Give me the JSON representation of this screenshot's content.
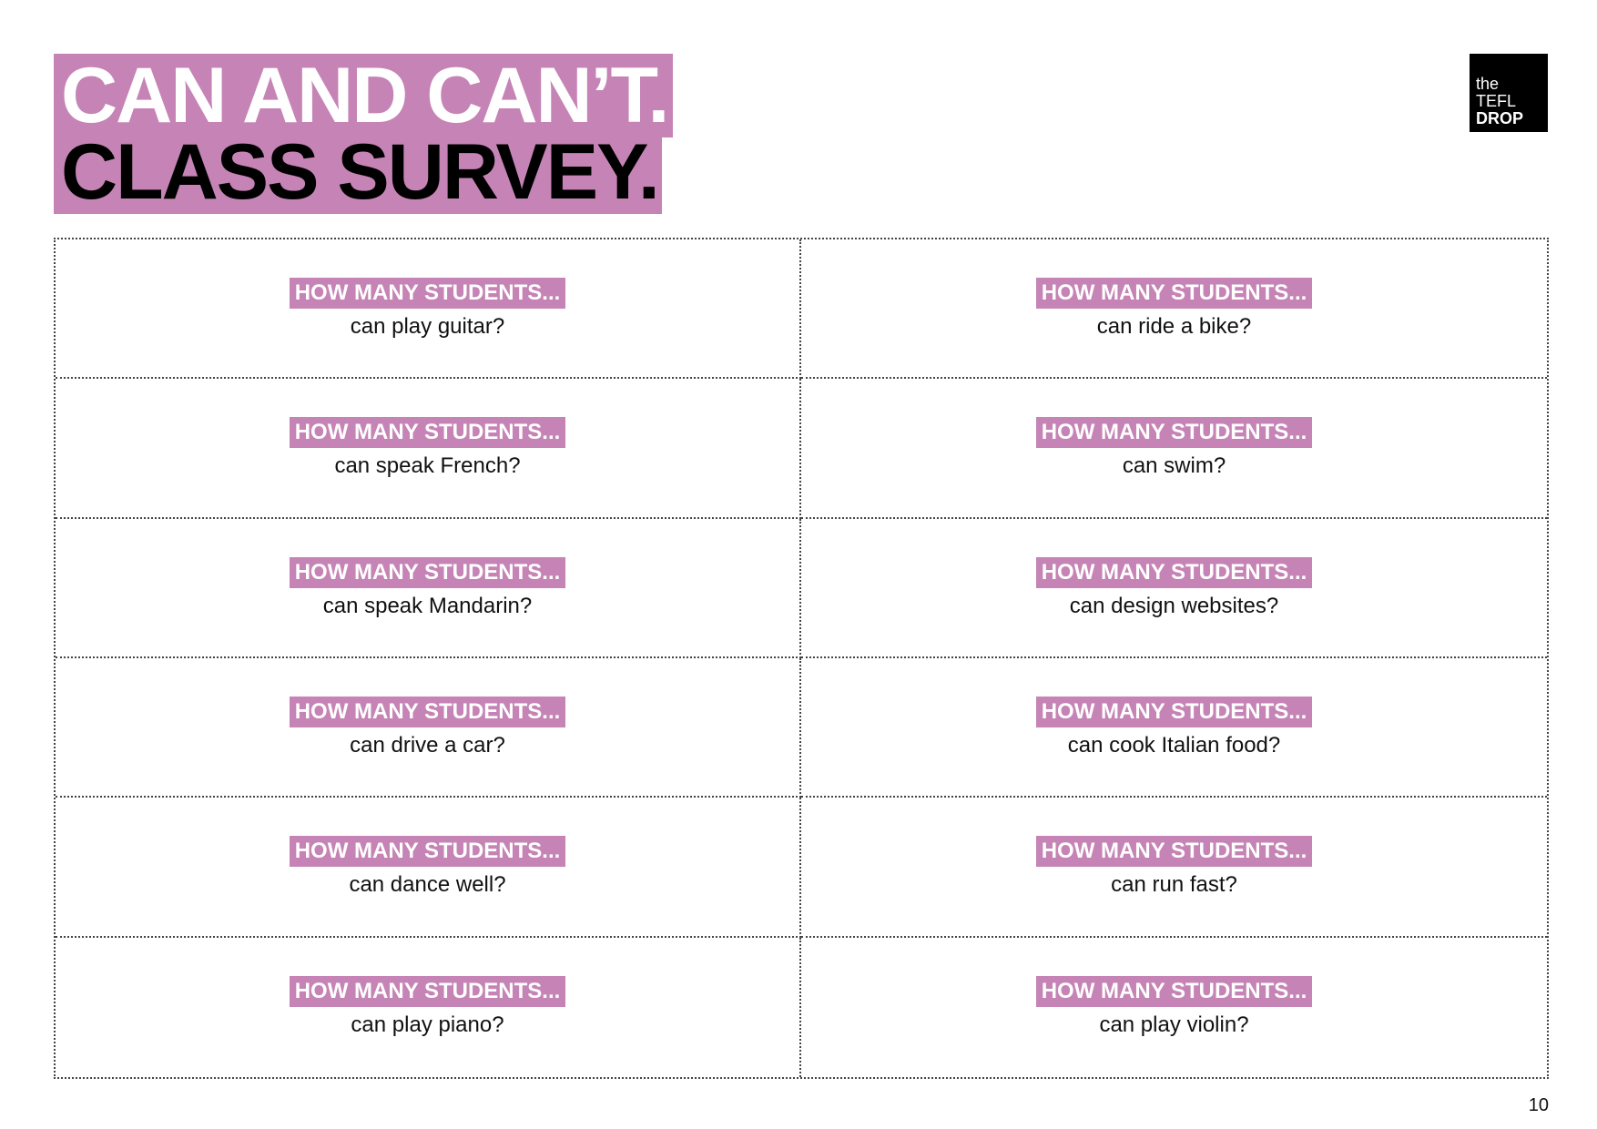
{
  "title": {
    "line1": "CAN AND CAN’T.",
    "line2": "CLASS SURVEY."
  },
  "logo": {
    "line1": "the",
    "line2": "TEFL",
    "line3": "DROP"
  },
  "prompt_label": "HOW MANY STUDENTS...",
  "cells": [
    {
      "tag": "HOW MANY STUDENTS...",
      "question": "can play guitar?"
    },
    {
      "tag": "HOW MANY STUDENTS...",
      "question": "can ride a bike?"
    },
    {
      "tag": "HOW MANY STUDENTS...",
      "question": "can speak French?"
    },
    {
      "tag": "HOW MANY STUDENTS...",
      "question": "can swim?"
    },
    {
      "tag": "HOW MANY STUDENTS...",
      "question": "can speak Mandarin?"
    },
    {
      "tag": "HOW MANY STUDENTS...",
      "question": "can design websites?"
    },
    {
      "tag": "HOW MANY STUDENTS...",
      "question": "can drive a car?"
    },
    {
      "tag": "HOW MANY STUDENTS...",
      "question": "can cook Italian food?"
    },
    {
      "tag": "HOW MANY STUDENTS...",
      "question": "can dance well?"
    },
    {
      "tag": "HOW MANY STUDENTS...",
      "question": "can run fast?"
    },
    {
      "tag": "HOW MANY STUDENTS...",
      "question": "can play piano?"
    },
    {
      "tag": "HOW MANY STUDENTS...",
      "question": "can play violin?"
    }
  ],
  "page_number": "10",
  "colors": {
    "accent": "#c584b5",
    "text": "#000000",
    "background": "#ffffff"
  }
}
